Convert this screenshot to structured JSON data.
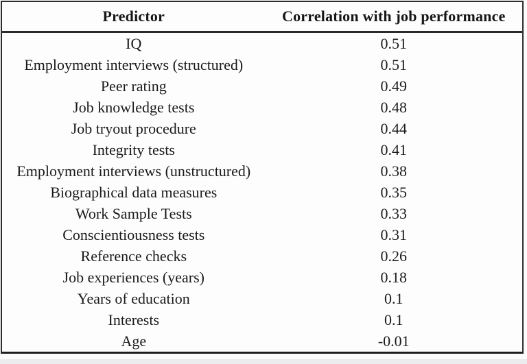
{
  "chart_data": {
    "type": "table",
    "title": "",
    "columns": [
      "Predictor",
      "Correlation with job performance"
    ],
    "categories": [
      "IQ",
      "Employment interviews (structured)",
      "Peer rating",
      "Job knowledge tests",
      "Job tryout procedure",
      "Integrity tests",
      "Employment interviews (unstructured)",
      "Biographical data measures",
      "Work Sample Tests",
      "Conscientiousness tests",
      "Reference checks",
      "Job experiences (years)",
      "Years of education",
      "Interests",
      "Age"
    ],
    "values": [
      0.51,
      0.51,
      0.49,
      0.48,
      0.44,
      0.41,
      0.38,
      0.35,
      0.33,
      0.31,
      0.26,
      0.18,
      0.1,
      0.1,
      -0.01
    ],
    "legend_position": "none",
    "grid": false
  },
  "table": {
    "header": {
      "predictor": "Predictor",
      "correlation": "Correlation with job performance"
    },
    "rows": [
      {
        "predictor": "IQ",
        "value": "0.51"
      },
      {
        "predictor": "Employment interviews (structured)",
        "value": "0.51"
      },
      {
        "predictor": "Peer rating",
        "value": "0.49"
      },
      {
        "predictor": "Job knowledge tests",
        "value": "0.48"
      },
      {
        "predictor": "Job tryout procedure",
        "value": "0.44"
      },
      {
        "predictor": "Integrity tests",
        "value": "0.41"
      },
      {
        "predictor": "Employment interviews (unstructured)",
        "value": "0.38"
      },
      {
        "predictor": "Biographical data measures",
        "value": "0.35"
      },
      {
        "predictor": "Work Sample Tests",
        "value": "0.33"
      },
      {
        "predictor": "Conscientiousness tests",
        "value": "0.31"
      },
      {
        "predictor": "Reference checks",
        "value": "0.26"
      },
      {
        "predictor": "Job experiences (years)",
        "value": "0.18"
      },
      {
        "predictor": "Years of education",
        "value": "0.1"
      },
      {
        "predictor": "Interests",
        "value": "0.1"
      },
      {
        "predictor": "Age",
        "value": "-0.01"
      }
    ]
  },
  "colors": {
    "text": "#1a1a1a",
    "border": "#2e2e30",
    "background": "#fdfdfe",
    "bottom_strip": "#ececef"
  }
}
